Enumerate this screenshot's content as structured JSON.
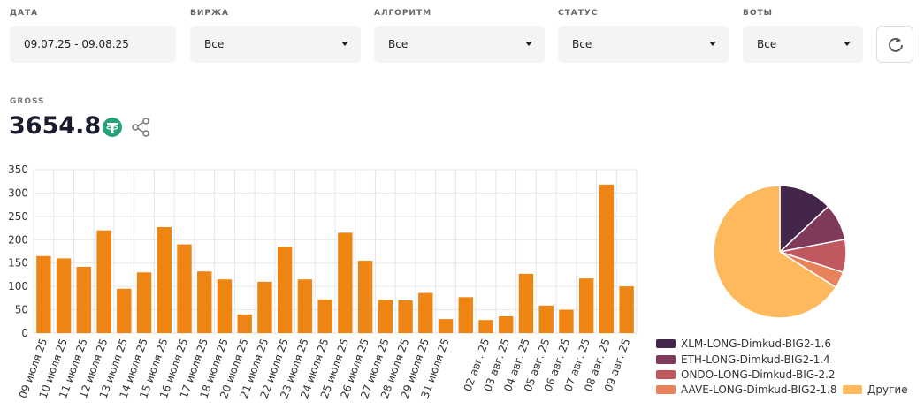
{
  "filters": [
    {
      "label": "ДАТА",
      "value": "09.07.25 - 09.08.25"
    },
    {
      "label": "БИРЖА",
      "value": "Все"
    },
    {
      "label": "АЛГОРИТМ",
      "value": "Все"
    },
    {
      "label": "СТАТУС",
      "value": "Все"
    },
    {
      "label": "БОТЫ",
      "value": "Все"
    }
  ],
  "gross": {
    "label": "GROSS",
    "value": "3654.8"
  },
  "chart_data": [
    {
      "type": "bar",
      "color": "#ee8412",
      "grid": true,
      "ylim": [
        0,
        350
      ],
      "yticks": [
        0,
        50,
        100,
        150,
        200,
        250,
        300,
        350
      ],
      "categories": [
        "09 июля 25",
        "10 июля 25",
        "11 июля 25",
        "12 июля 25",
        "13 июля 25",
        "14 июля 25",
        "15 июля 25",
        "16 июля 25",
        "17 июля 25",
        "18 июля 25",
        "20 июля 25",
        "21 июля 25",
        "22 июля 25",
        "23 июля 25",
        "24 июля 25",
        "25 июля 25",
        "26 июля 25",
        "27 июля 25",
        "28 июля 25",
        "29 июля 25",
        "31 июля 25",
        null,
        "02 авг. 25",
        "03 авг. 25",
        "04 авг. 25",
        "05 авг. 25",
        "06 авг. 25",
        "07 авг. 25",
        "08 авг. 25",
        "09 авг. 25"
      ],
      "values": [
        165,
        160,
        142,
        220,
        95,
        130,
        227,
        190,
        132,
        115,
        40,
        110,
        185,
        115,
        72,
        215,
        155,
        71,
        70,
        86,
        30,
        77,
        28,
        36,
        127,
        59,
        50,
        117,
        318,
        100
      ]
    },
    {
      "type": "pie",
      "categories": [
        "XLM-LONG-Dimkud-BIG2-1.6",
        "ETH-LONG-Dimkud-BIG2-1.4",
        "ONDO-LONG-Dimkud-BIG-2.2",
        "AAVE-LONG-Dimkud-BIG2-1.8",
        "Другие"
      ],
      "values": [
        13,
        9,
        8,
        4,
        66
      ],
      "colors": [
        "#43264a",
        "#7f3a5c",
        "#c0585f",
        "#e8825a",
        "#fdb95b"
      ]
    }
  ]
}
